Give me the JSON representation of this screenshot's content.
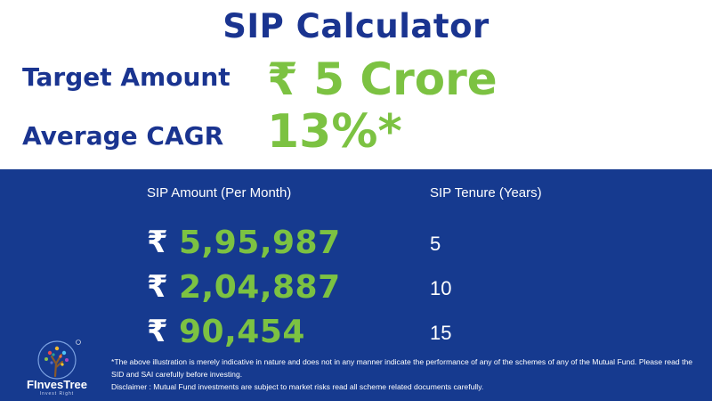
{
  "title": "SIP Calculator",
  "target": {
    "label": "Target Amount",
    "value": "₹ 5 Crore"
  },
  "cagr": {
    "label": "Average CAGR",
    "value": "13%*"
  },
  "table": {
    "col_amount": "SIP Amount (Per Month)",
    "col_tenure": "SIP Tenure (Years)",
    "currency_symbol": "₹",
    "rows": [
      {
        "amount": "5,95,987",
        "tenure": "5"
      },
      {
        "amount": "2,04,887",
        "tenure": "10"
      },
      {
        "amount": "90,454",
        "tenure": "15"
      }
    ]
  },
  "brand": {
    "name": "FInvesTree",
    "tagline": "Invest Right",
    "logo_icon": "tree-globe-icon"
  },
  "disclaimer": {
    "line1": "*The above illustration is merely indicative in nature and does not in any manner indicate the performance of any of the schemes of any of the Mutual Fund. Please read the SID and SAI carefully before investing.",
    "line2": "Disclaimer : Mutual Fund investments are subject to market risks read all scheme related documents carefully."
  },
  "colors": {
    "navy": "#1a3490",
    "panel": "#163a8f",
    "green": "#7cc242"
  }
}
